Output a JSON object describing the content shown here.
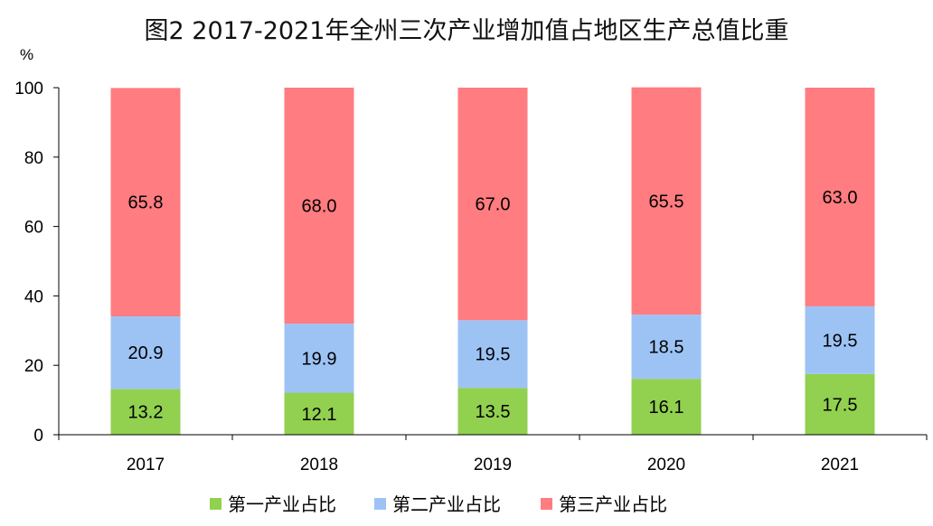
{
  "chart_data": {
    "type": "bar",
    "stacked": true,
    "title": "图2  2017-2021年全州三次产业增加值占地区生产总值比重",
    "ylabel": "%",
    "xlabel": "",
    "ylim": [
      0,
      100
    ],
    "yticks": [
      0,
      20,
      40,
      60,
      80,
      100
    ],
    "categories": [
      "2017",
      "2018",
      "2019",
      "2020",
      "2021"
    ],
    "series": [
      {
        "name": "第一产业占比",
        "color": "#92D050",
        "values": [
          13.2,
          12.1,
          13.5,
          16.1,
          17.5
        ]
      },
      {
        "name": "第二产业占比",
        "color": "#9DC3F5",
        "values": [
          20.9,
          19.9,
          19.5,
          18.5,
          19.5
        ]
      },
      {
        "name": "第三产业占比",
        "color": "#FF7C80",
        "values": [
          65.8,
          68.0,
          67.0,
          65.5,
          63.0
        ]
      }
    ],
    "legend": "bottom",
    "grid": false
  }
}
